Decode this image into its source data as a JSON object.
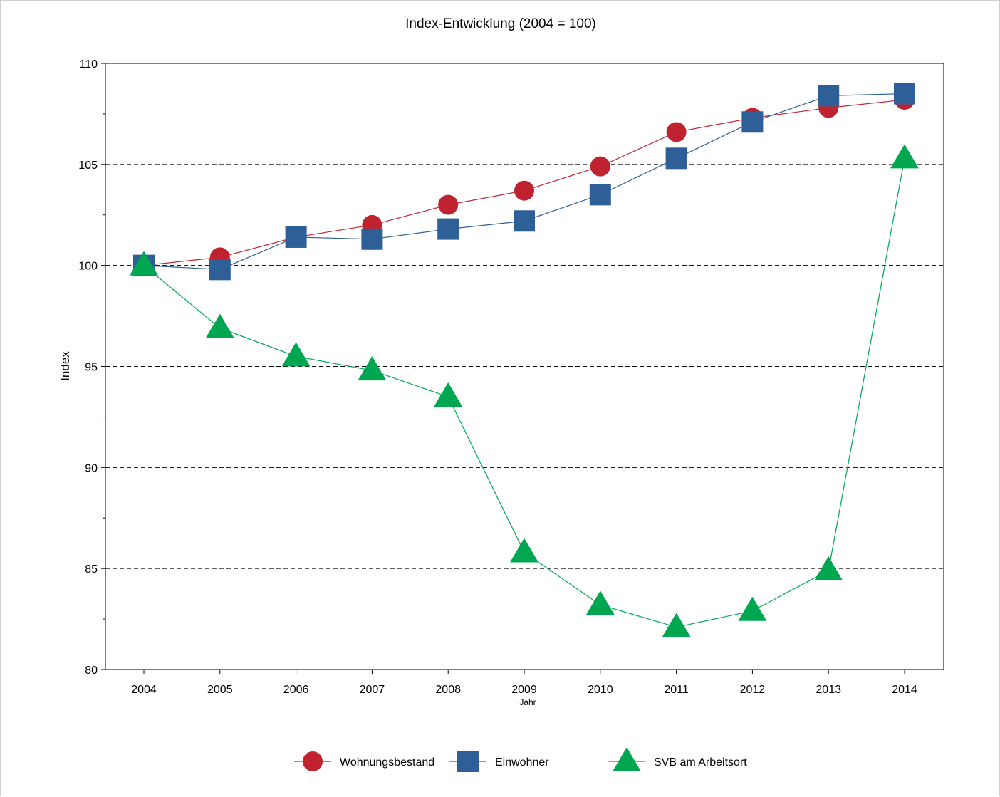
{
  "chart_data": {
    "type": "line",
    "title": "Index-Entwicklung (2004 = 100)",
    "xlabel": "Jahr",
    "ylabel": "Index",
    "categories": [
      "2004",
      "2005",
      "2006",
      "2007",
      "2008",
      "2009",
      "2010",
      "2011",
      "2012",
      "2013",
      "2014"
    ],
    "ylim": [
      80,
      110
    ],
    "yticks": [
      80,
      85,
      90,
      95,
      100,
      105,
      110
    ],
    "grid": "horizontal dashed at 85, 90, 95, 100, 105",
    "legend_position": "bottom",
    "series": [
      {
        "name": "Wohnungsbestand",
        "marker": "circle",
        "color": "#c0232f",
        "values": [
          100.0,
          100.4,
          101.4,
          102.0,
          103.0,
          103.7,
          104.9,
          106.6,
          107.3,
          107.8,
          108.2
        ]
      },
      {
        "name": "Einwohner",
        "marker": "square",
        "color": "#2e5f96",
        "values": [
          100.0,
          99.8,
          101.4,
          101.3,
          101.8,
          102.2,
          103.5,
          105.3,
          107.1,
          108.4,
          108.5
        ]
      },
      {
        "name": "SVB am Arbeitsort",
        "marker": "triangle",
        "color": "#00a650",
        "values": [
          100.0,
          96.9,
          95.5,
          94.8,
          93.5,
          85.8,
          83.2,
          82.1,
          82.9,
          84.9,
          105.3
        ]
      }
    ]
  }
}
